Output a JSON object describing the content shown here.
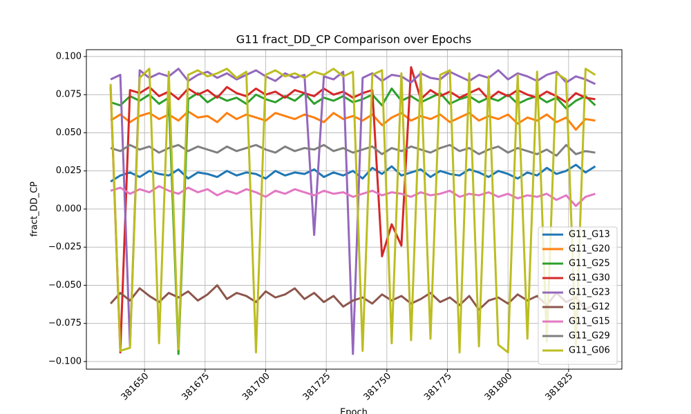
{
  "chart_data": {
    "type": "line",
    "title": "G11 fract_DD_CP Comparison over Epochs",
    "xlabel": "Epoch",
    "ylabel": "fract_DD_CP",
    "x": [
      381636,
      381640,
      381644,
      381648,
      381652,
      381656,
      381660,
      381664,
      381668,
      381672,
      381676,
      381680,
      381684,
      381688,
      381692,
      381696,
      381700,
      381704,
      381708,
      381712,
      381716,
      381720,
      381724,
      381728,
      381732,
      381736,
      381740,
      381744,
      381748,
      381752,
      381756,
      381760,
      381764,
      381768,
      381772,
      381776,
      381780,
      381784,
      381788,
      381792,
      381796,
      381800,
      381804,
      381808,
      381812,
      381816,
      381820,
      381824,
      381828,
      381832,
      381836
    ],
    "series": [
      {
        "name": "G11_G13",
        "color": "#1f77b4",
        "values": [
          0.018,
          0.022,
          0.024,
          0.021,
          0.025,
          0.023,
          0.022,
          0.026,
          0.02,
          0.024,
          0.023,
          0.021,
          0.025,
          0.022,
          0.024,
          0.023,
          0.02,
          0.025,
          0.022,
          0.024,
          0.023,
          0.026,
          0.021,
          0.024,
          0.022,
          0.025,
          0.02,
          0.027,
          0.023,
          0.028,
          0.022,
          0.024,
          0.026,
          0.021,
          0.025,
          0.023,
          0.022,
          0.026,
          0.024,
          0.021,
          0.025,
          0.023,
          0.02,
          0.024,
          0.022,
          0.027,
          0.023,
          0.025,
          0.029,
          0.024,
          0.028
        ]
      },
      {
        "name": "G11_G20",
        "color": "#ff7f0e",
        "values": [
          0.058,
          0.062,
          0.057,
          0.061,
          0.063,
          0.059,
          0.062,
          0.058,
          0.064,
          0.06,
          0.061,
          0.057,
          0.063,
          0.059,
          0.062,
          0.06,
          0.058,
          0.063,
          0.061,
          0.059,
          0.062,
          0.06,
          0.057,
          0.063,
          0.059,
          0.061,
          0.058,
          0.062,
          0.055,
          0.06,
          0.063,
          0.058,
          0.061,
          0.059,
          0.062,
          0.057,
          0.06,
          0.063,
          0.058,
          0.061,
          0.059,
          0.062,
          0.056,
          0.06,
          0.058,
          0.062,
          0.057,
          0.06,
          0.052,
          0.059,
          0.058
        ]
      },
      {
        "name": "G11_G25",
        "color": "#2ca02c",
        "values": [
          0.07,
          0.068,
          0.074,
          0.071,
          0.075,
          0.069,
          0.073,
          -0.095,
          0.072,
          0.076,
          0.07,
          0.074,
          0.071,
          0.073,
          0.069,
          0.075,
          0.072,
          0.07,
          0.074,
          0.071,
          0.076,
          0.069,
          0.073,
          0.071,
          0.074,
          0.07,
          0.072,
          0.075,
          0.068,
          0.079,
          0.071,
          0.074,
          0.07,
          0.073,
          0.076,
          0.069,
          0.072,
          0.074,
          0.07,
          0.073,
          0.071,
          0.075,
          0.069,
          0.072,
          0.074,
          0.07,
          0.073,
          0.066,
          0.071,
          0.074,
          0.068
        ]
      },
      {
        "name": "G11_G30",
        "color": "#d62728",
        "values": [
          0.08,
          -0.094,
          0.078,
          0.076,
          0.08,
          0.074,
          0.077,
          0.072,
          0.079,
          0.075,
          0.078,
          0.073,
          0.08,
          0.076,
          0.074,
          0.079,
          0.075,
          0.077,
          0.073,
          0.078,
          0.076,
          0.074,
          0.079,
          0.075,
          0.077,
          0.073,
          0.076,
          0.078,
          -0.031,
          -0.01,
          -0.024,
          0.093,
          0.072,
          0.078,
          0.074,
          0.077,
          0.073,
          0.076,
          0.079,
          0.072,
          0.077,
          0.074,
          0.078,
          0.075,
          0.073,
          0.077,
          0.074,
          0.07,
          0.076,
          0.073,
          0.072
        ]
      },
      {
        "name": "G11_G23",
        "color": "#9467bd",
        "values": [
          0.085,
          0.088,
          -0.09,
          0.091,
          0.086,
          0.089,
          0.087,
          0.092,
          0.084,
          0.088,
          0.09,
          0.086,
          0.089,
          0.085,
          0.088,
          0.091,
          0.087,
          0.084,
          0.089,
          0.086,
          0.088,
          -0.017,
          0.087,
          0.085,
          0.09,
          -0.095,
          0.086,
          0.089,
          0.084,
          0.088,
          0.087,
          0.083,
          0.089,
          0.086,
          0.085,
          0.09,
          0.087,
          0.084,
          0.088,
          0.086,
          0.091,
          0.085,
          0.089,
          0.087,
          0.084,
          0.088,
          0.09,
          0.083,
          0.087,
          0.085,
          0.082
        ]
      },
      {
        "name": "G11_G12",
        "color": "#8c564b",
        "values": [
          -0.062,
          -0.055,
          -0.06,
          -0.052,
          -0.057,
          -0.061,
          -0.055,
          -0.058,
          -0.054,
          -0.06,
          -0.056,
          -0.05,
          -0.059,
          -0.055,
          -0.057,
          -0.061,
          -0.054,
          -0.058,
          -0.056,
          -0.052,
          -0.059,
          -0.055,
          -0.061,
          -0.057,
          -0.064,
          -0.06,
          -0.058,
          -0.062,
          -0.056,
          -0.06,
          -0.057,
          -0.062,
          -0.059,
          -0.055,
          -0.061,
          -0.058,
          -0.063,
          -0.057,
          -0.066,
          -0.06,
          -0.058,
          -0.062,
          -0.056,
          -0.06,
          -0.057,
          -0.063,
          -0.055,
          -0.061,
          -0.058,
          -0.066,
          -0.062
        ]
      },
      {
        "name": "G11_G15",
        "color": "#e377c2",
        "values": [
          0.012,
          0.014,
          0.01,
          0.013,
          0.011,
          0.015,
          0.012,
          0.01,
          0.014,
          0.011,
          0.013,
          0.009,
          0.012,
          0.01,
          0.013,
          0.011,
          0.008,
          0.012,
          0.01,
          0.013,
          0.011,
          0.009,
          0.012,
          0.01,
          0.011,
          0.008,
          0.01,
          0.012,
          0.009,
          0.011,
          0.01,
          0.008,
          0.011,
          0.009,
          0.01,
          0.012,
          0.008,
          0.01,
          0.009,
          0.011,
          0.008,
          0.01,
          0.007,
          0.009,
          0.008,
          0.01,
          0.006,
          0.009,
          0.002,
          0.008,
          0.01
        ]
      },
      {
        "name": "G11_G29",
        "color": "#7f7f7f",
        "values": [
          0.04,
          0.038,
          0.042,
          0.039,
          0.041,
          0.037,
          0.04,
          0.042,
          0.038,
          0.041,
          0.039,
          0.037,
          0.041,
          0.038,
          0.04,
          0.042,
          0.039,
          0.037,
          0.041,
          0.038,
          0.04,
          0.039,
          0.042,
          0.038,
          0.04,
          0.037,
          0.039,
          0.041,
          0.036,
          0.04,
          0.038,
          0.041,
          0.039,
          0.037,
          0.04,
          0.042,
          0.038,
          0.04,
          0.036,
          0.039,
          0.041,
          0.037,
          0.04,
          0.038,
          0.036,
          0.039,
          0.035,
          0.042,
          0.036,
          0.038,
          0.037
        ]
      },
      {
        "name": "G11_G06",
        "color": "#bcbd22",
        "values": [
          0.082,
          -0.093,
          -0.091,
          0.086,
          0.092,
          -0.088,
          0.09,
          -0.092,
          0.088,
          0.091,
          0.087,
          0.089,
          0.092,
          0.086,
          0.09,
          -0.094,
          0.088,
          0.091,
          0.087,
          0.089,
          0.086,
          0.09,
          0.088,
          0.092,
          0.087,
          0.09,
          -0.093,
          0.088,
          0.091,
          -0.088,
          0.089,
          -0.086,
          0.09,
          -0.085,
          0.088,
          0.091,
          -0.094,
          0.089,
          -0.09,
          0.087,
          -0.089,
          -0.094,
          0.088,
          -0.085,
          0.09,
          -0.087,
          0.089,
          0.085,
          -0.09,
          0.092,
          0.088
        ]
      }
    ],
    "xlim": [
      381626,
      381847
    ],
    "ylim": [
      -0.105,
      0.1045
    ],
    "xticks": [
      381650,
      381675,
      381700,
      381725,
      381750,
      381775,
      381800,
      381825
    ],
    "yticks": [
      {
        "value": -0.1,
        "label": "−0.100"
      },
      {
        "value": -0.075,
        "label": "−0.075"
      },
      {
        "value": -0.05,
        "label": "−0.050"
      },
      {
        "value": -0.025,
        "label": "−0.025"
      },
      {
        "value": 0,
        "label": "0.000"
      },
      {
        "value": 0.025,
        "label": "0.025"
      },
      {
        "value": 0.05,
        "label": "0.050"
      },
      {
        "value": 0.075,
        "label": "0.075"
      },
      {
        "value": 0.1,
        "label": "0.100"
      }
    ],
    "grid": true,
    "legend": "lower right"
  }
}
